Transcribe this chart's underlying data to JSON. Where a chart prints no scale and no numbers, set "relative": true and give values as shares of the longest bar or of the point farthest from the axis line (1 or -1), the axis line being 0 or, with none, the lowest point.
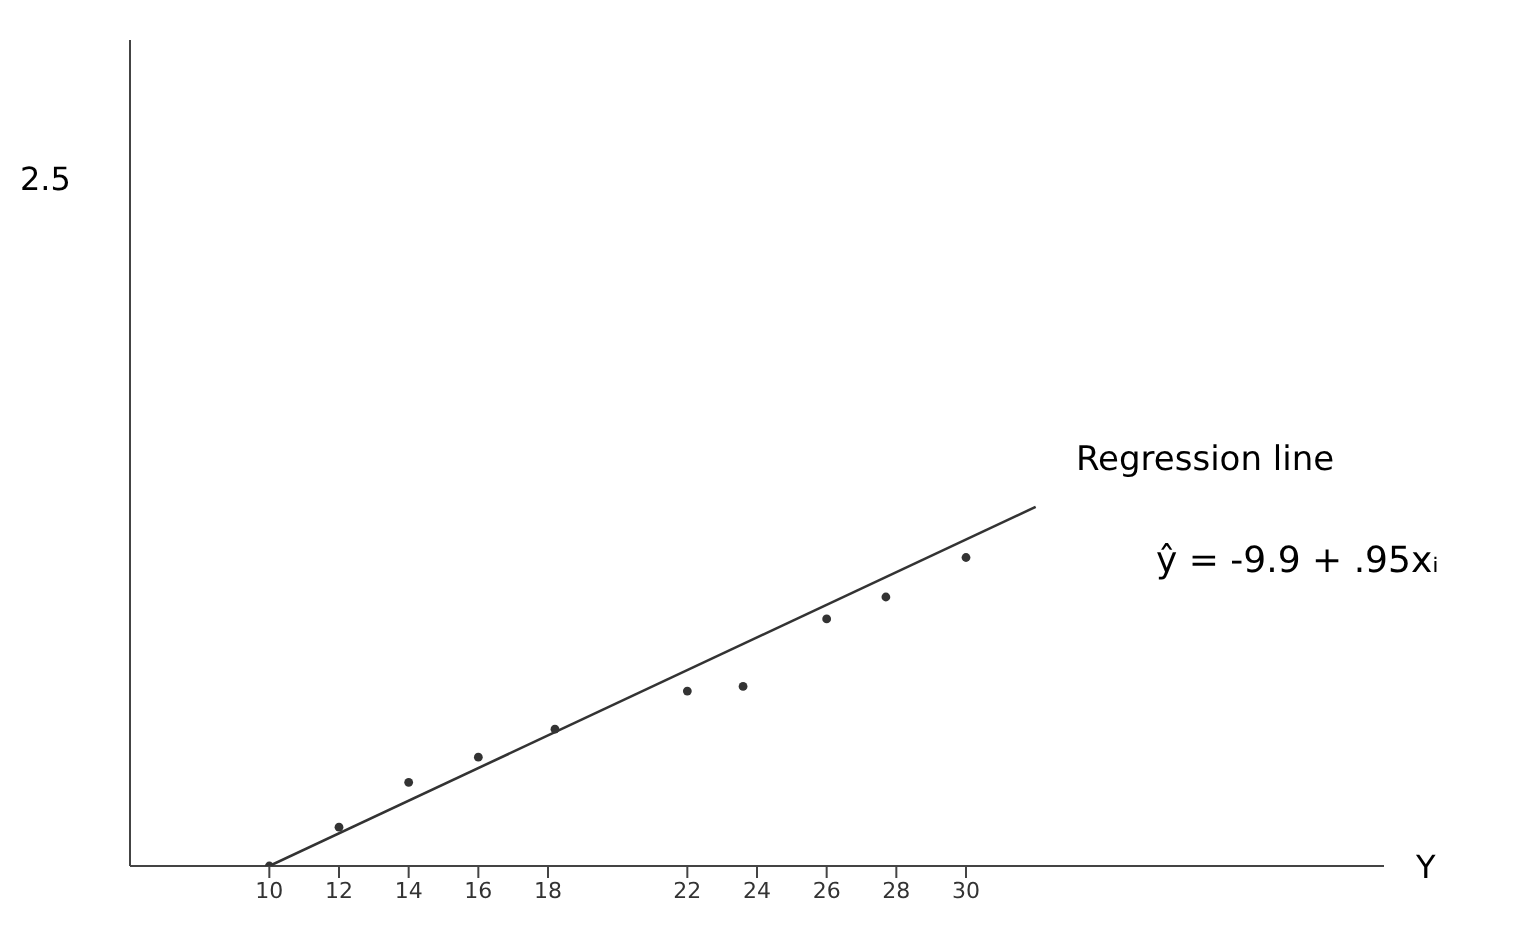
{
  "chart_data": {
    "type": "scatter",
    "relative": true,
    "xlabel": "Y",
    "annotations": [
      "2.5",
      "Regression line",
      "ŷ = -9.9 + .95xᵢ"
    ],
    "xlim": [
      6,
      42
    ],
    "xticks": [
      10,
      12,
      14,
      16,
      18,
      22,
      24,
      26,
      28,
      30
    ],
    "grid": false,
    "legend": false,
    "series": [
      {
        "color": "#333333",
        "marker": "circle",
        "x": [
          10,
          12,
          14,
          16,
          18.2,
          22,
          23.6,
          26,
          27.7,
          30
        ],
        "values": [
          0,
          0.108,
          0.233,
          0.303,
          0.381,
          0.487,
          0.5,
          0.688,
          0.749,
          0.859
        ]
      },
      {
        "type": "line",
        "color": "#333333",
        "marker": "none",
        "x": [
          10,
          32
        ],
        "values": [
          0,
          1
        ]
      }
    ]
  }
}
